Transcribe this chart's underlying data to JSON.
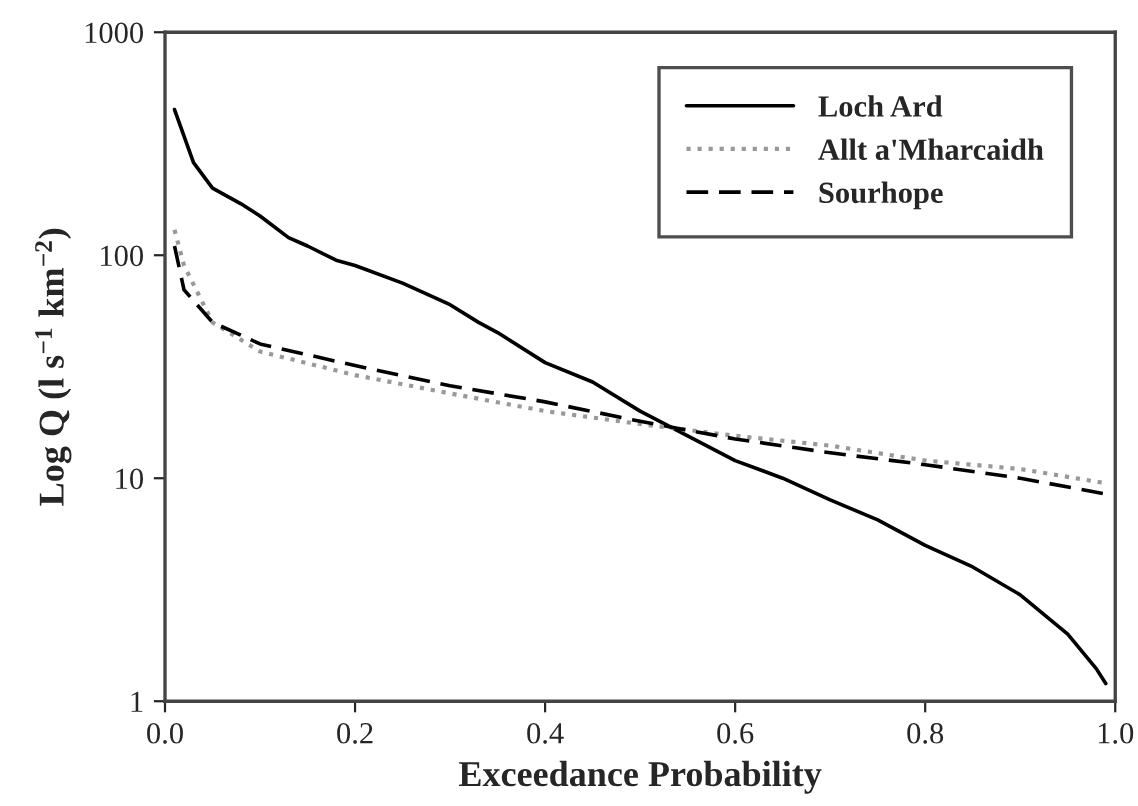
{
  "chart_data": {
    "type": "line",
    "xlabel": "Exceedance Probability",
    "ylabel": "Log Q (l s$^{−1}$ km$^{−2}$)",
    "log": "y",
    "grid": false,
    "legend": "top right",
    "marker": "none",
    "xlim": [
      0,
      1
    ],
    "xticks": [
      {
        "value": 0,
        "label": "0.0"
      },
      {
        "value": 0.2,
        "label": "0.2"
      },
      {
        "value": 0.4,
        "label": "0.4"
      },
      {
        "value": 0.6,
        "label": "0.6"
      },
      {
        "value": 0.8,
        "label": "0.8"
      },
      {
        "value": 1,
        "label": "1.0"
      }
    ],
    "ylim": [
      1,
      1000
    ],
    "yticks": [
      1,
      10,
      100,
      1000
    ],
    "series": [
      {
        "name": "Loch Ard",
        "color": "#000000",
        "line_style": "solid",
        "x": [
          0.01,
          0.03,
          0.05,
          0.08,
          0.1,
          0.13,
          0.15,
          0.18,
          0.2,
          0.25,
          0.3,
          0.33,
          0.35,
          0.4,
          0.45,
          0.5,
          0.55,
          0.6,
          0.65,
          0.7,
          0.75,
          0.8,
          0.85,
          0.9,
          0.95,
          0.98,
          0.99
        ],
        "values": [
          450,
          260,
          200,
          170,
          150,
          120,
          110,
          95,
          90,
          75,
          60,
          50,
          45,
          33,
          27,
          20,
          15.5,
          12,
          10,
          8,
          6.5,
          5,
          4,
          3,
          2,
          1.4,
          1.2
        ]
      },
      {
        "name": "Allt a'Mharcaidh",
        "color": "#999999",
        "line_style": "dotted",
        "x": [
          0.01,
          0.02,
          0.05,
          0.1,
          0.2,
          0.3,
          0.4,
          0.5,
          0.6,
          0.7,
          0.8,
          0.9,
          0.99
        ],
        "values": [
          130,
          90,
          50,
          37,
          29,
          24,
          20,
          17.5,
          15.5,
          14,
          12,
          11,
          9.5
        ]
      },
      {
        "name": "Sourhope",
        "color": "#000000",
        "line_style": "dashed",
        "x": [
          0.01,
          0.02,
          0.05,
          0.1,
          0.2,
          0.3,
          0.4,
          0.5,
          0.6,
          0.7,
          0.8,
          0.9,
          0.99
        ],
        "values": [
          110,
          70,
          50,
          40,
          32,
          26,
          22,
          18,
          15,
          13,
          11.5,
          10,
          8.5
        ]
      }
    ]
  }
}
